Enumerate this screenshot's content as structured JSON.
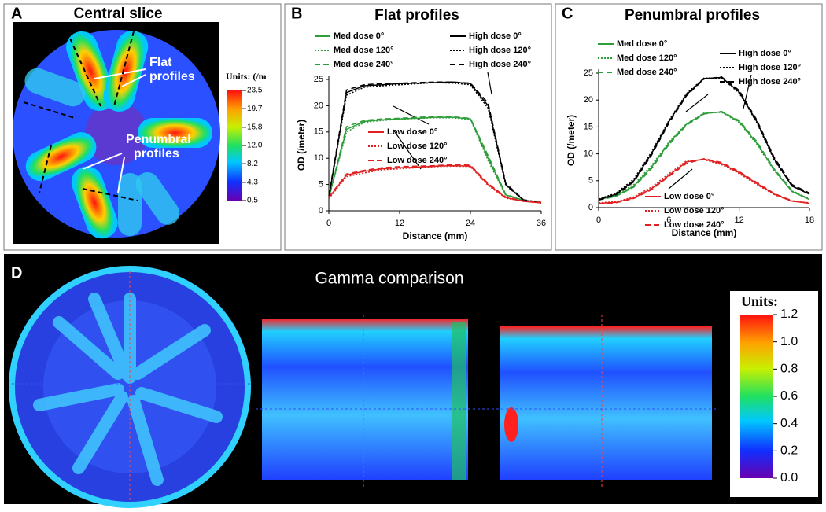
{
  "panels": {
    "a": {
      "label": "A",
      "title": "Central slice",
      "annotations": [
        [
          "Flat",
          "profiles"
        ],
        [
          "Penumbral",
          "profiles"
        ]
      ],
      "colorbar": {
        "title": "Units: (/m",
        "lim": [
          0.5,
          23.5
        ],
        "ticks": [
          23.5,
          19.7,
          15.8,
          {
            "value": 12,
            "label": "12.0"
          },
          8.2,
          4.3,
          0.5
        ]
      }
    },
    "d": {
      "label": "D",
      "title": "Gamma comparison",
      "colorbar": {
        "title": "Units:",
        "lim": [
          0,
          1.2
        ],
        "ticks": [
          1.2,
          {
            "value": 1,
            "label": "1.0"
          },
          0.8,
          0.6,
          0.4,
          0.2,
          {
            "value": 0,
            "label": "0.0"
          }
        ]
      }
    }
  },
  "chart_data": [
    {
      "type": "line",
      "panel_label": "B",
      "title": "Flat profiles",
      "xlabel": "Distance (mm)",
      "ylabel": "OD (/meter)",
      "x": [
        0,
        3,
        6,
        9,
        12,
        15,
        18,
        21,
        24,
        27,
        30,
        33,
        36
      ],
      "xlim": [
        0,
        36
      ],
      "xticks": [
        0,
        12,
        24,
        36
      ],
      "ylim": [
        0,
        25
      ],
      "yticks": [
        0,
        5,
        10,
        15,
        20,
        25
      ],
      "series": [
        {
          "name": "Med dose 0°",
          "color": "#2e9e3a",
          "dash": "solid",
          "values": [
            2.5,
            15.5,
            17,
            17.3,
            17.5,
            17.6,
            17.8,
            17.8,
            17.5,
            10,
            3,
            2,
            1.5
          ]
        },
        {
          "name": "Med dose 120°",
          "color": "#2e9e3a",
          "dash": "dotted",
          "values": [
            2.4,
            15,
            16.8,
            17.2,
            17.4,
            17.6,
            17.7,
            17.7,
            17.4,
            9.5,
            2.9,
            1.9,
            1.5
          ]
        },
        {
          "name": "Med dose 240°",
          "color": "#2e9e3a",
          "dash": "dashed",
          "values": [
            2.6,
            16,
            17.2,
            17.5,
            17.6,
            17.8,
            17.9,
            17.9,
            17.6,
            10.5,
            3.1,
            2,
            1.6
          ]
        },
        {
          "name": "High dose 0°",
          "color": "#000000",
          "dash": "solid",
          "values": [
            2.5,
            22.5,
            23.8,
            24,
            24.2,
            24.3,
            24.4,
            24.5,
            24.2,
            20,
            5,
            2,
            1.5
          ]
        },
        {
          "name": "High dose 120°",
          "color": "#000000",
          "dash": "dotted",
          "values": [
            2.5,
            22,
            23.5,
            23.8,
            24,
            24.2,
            24.4,
            24.3,
            24,
            19.5,
            4.8,
            2,
            1.5
          ]
        },
        {
          "name": "High dose 240°",
          "color": "#000000",
          "dash": "dashed",
          "values": [
            2.8,
            23,
            24,
            24.2,
            24.3,
            24.4,
            24.5,
            24.5,
            24.3,
            20.5,
            5.2,
            2.1,
            1.6
          ]
        },
        {
          "name": "Low dose 0°",
          "color": "#e02020",
          "dash": "solid",
          "values": [
            2.5,
            6.8,
            7.5,
            8,
            8.2,
            8.3,
            8.5,
            8.6,
            8.5,
            5,
            2.5,
            1.8,
            1.5
          ]
        },
        {
          "name": "Low dose 120°",
          "color": "#e02020",
          "dash": "dotted",
          "values": [
            2.3,
            6.5,
            7.2,
            7.8,
            8,
            8.2,
            8.4,
            8.5,
            8.4,
            4.8,
            2.4,
            1.8,
            1.5
          ]
        },
        {
          "name": "Low dose 240°",
          "color": "#e02020",
          "dash": "dashed",
          "values": [
            2.6,
            7,
            7.7,
            8.2,
            8.4,
            8.5,
            8.6,
            8.8,
            8.7,
            5.2,
            2.6,
            1.9,
            1.6
          ]
        }
      ]
    },
    {
      "type": "line",
      "panel_label": "C",
      "title": "Penumbral profiles",
      "xlabel": "Distance (mm)",
      "ylabel": "OD (/meter)",
      "x": [
        0,
        1.5,
        3,
        4.5,
        6,
        7.5,
        9,
        10.5,
        12,
        13.5,
        15,
        16.5,
        18
      ],
      "xlim": [
        0,
        18
      ],
      "xticks": [
        0,
        6,
        12,
        18
      ],
      "ylim": [
        0,
        25
      ],
      "yticks": [
        0,
        5,
        10,
        15,
        20,
        25
      ],
      "series": [
        {
          "name": "Med dose 0°",
          "color": "#2e9e3a",
          "dash": "solid",
          "values": [
            1.5,
            2.2,
            4,
            7.5,
            12,
            15.5,
            17.5,
            17.8,
            16,
            12,
            7,
            3,
            1.5
          ]
        },
        {
          "name": "Med dose 120°",
          "color": "#2e9e3a",
          "dash": "dotted",
          "values": [
            1.6,
            2.4,
            4.3,
            7.8,
            12.2,
            15.6,
            17.6,
            17.7,
            15.8,
            11.8,
            6.8,
            3.1,
            1.6
          ]
        },
        {
          "name": "Med dose 240°",
          "color": "#2e9e3a",
          "dash": "dashed",
          "values": [
            1.4,
            2.1,
            3.8,
            7.2,
            11.7,
            15.3,
            17.4,
            17.9,
            16.2,
            12.3,
            7.2,
            3.2,
            1.5
          ]
        },
        {
          "name": "High dose 0°",
          "color": "#000000",
          "dash": "solid",
          "values": [
            1.5,
            2.5,
            5,
            10,
            16,
            21,
            24,
            24.2,
            21.5,
            16,
            9,
            4,
            2.5
          ]
        },
        {
          "name": "High dose 120°",
          "color": "#000000",
          "dash": "dotted",
          "values": [
            1.6,
            2.7,
            5.3,
            10.3,
            16.2,
            21.2,
            24.1,
            24.1,
            21.3,
            15.8,
            8.8,
            4.1,
            2.6
          ]
        },
        {
          "name": "High dose 240°",
          "color": "#000000",
          "dash": "dashed",
          "values": [
            1.4,
            2.4,
            4.8,
            9.7,
            15.7,
            20.8,
            23.9,
            24.3,
            21.8,
            16.3,
            9.3,
            4.3,
            2.7
          ]
        },
        {
          "name": "Low dose 0°",
          "color": "#e02020",
          "dash": "solid",
          "values": [
            0.8,
            1,
            1.8,
            3.5,
            6,
            8.5,
            9,
            8.2,
            6.5,
            4.5,
            2.5,
            1.2,
            0.8
          ]
        },
        {
          "name": "Low dose 120°",
          "color": "#e02020",
          "dash": "dotted",
          "values": [
            0.9,
            1.1,
            2,
            3.8,
            6.3,
            8.7,
            8.9,
            8,
            6.3,
            4.3,
            2.4,
            1.2,
            0.9
          ]
        },
        {
          "name": "Low dose 240°",
          "color": "#e02020",
          "dash": "dashed",
          "values": [
            0.7,
            0.9,
            1.7,
            3.3,
            5.8,
            8.2,
            9.1,
            8.4,
            6.7,
            4.7,
            2.6,
            1.3,
            0.8
          ]
        }
      ]
    }
  ]
}
